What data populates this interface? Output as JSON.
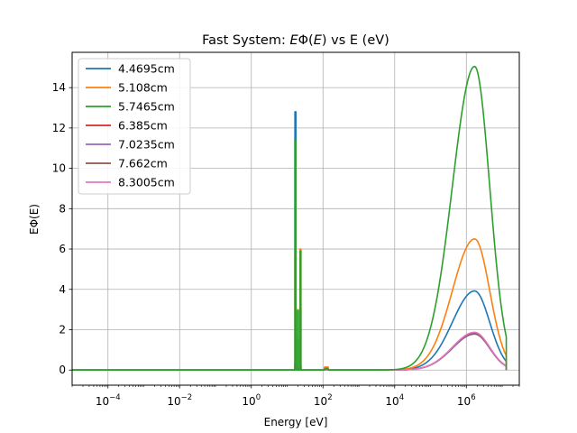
{
  "chart_data": {
    "type": "line",
    "title": "Fast System: EΦ(E) vs E (eV)",
    "title_parts": {
      "pre": "Fast System: ",
      "var": "E",
      "mid": "Φ(",
      "var2": "E",
      "post": ") vs E (eV)"
    },
    "xlabel": "Energy [eV]",
    "ylabel": "EΦ(E)",
    "x_scale": "log",
    "xlim": [
      1e-05,
      30000000.0
    ],
    "ylim": [
      -0.75,
      15.75
    ],
    "x_ticks": [
      {
        "value": 0.0001,
        "base": "10",
        "exp": "−4"
      },
      {
        "value": 0.01,
        "base": "10",
        "exp": "−2"
      },
      {
        "value": 1,
        "base": "10",
        "exp": "0"
      },
      {
        "value": 100.0,
        "base": "10",
        "exp": "2"
      },
      {
        "value": 10000.0,
        "base": "10",
        "exp": "4"
      },
      {
        "value": 1000000.0,
        "base": "10",
        "exp": "6"
      }
    ],
    "y_ticks": [
      0,
      2,
      4,
      6,
      8,
      10,
      12,
      14
    ],
    "grid": true,
    "legend_position": "top-left",
    "series": [
      {
        "name": "4.4695cm",
        "color": "#1f77b4",
        "peak": 3.92,
        "res1": 12.8,
        "res2": 3.1,
        "res3": 0.1,
        "zorder": 1
      },
      {
        "name": "5.108cm",
        "color": "#ff7f0e",
        "peak": 6.5,
        "res1": 5.8,
        "res2": 6.0,
        "res3": 0.15,
        "zorder": 2
      },
      {
        "name": "5.7465cm",
        "color": "#2ca02c",
        "peak": 15.05,
        "res1": 11.4,
        "res2": 5.9,
        "res3": 0.05,
        "zorder": 7
      },
      {
        "name": "6.385cm",
        "color": "#d62728",
        "peak": 1.85,
        "res1": 0.3,
        "res2": 0.2,
        "res3": 0.0,
        "zorder": 3
      },
      {
        "name": "7.0235cm",
        "color": "#9467bd",
        "peak": 1.78,
        "res1": 0.3,
        "res2": 0.2,
        "res3": 0.0,
        "zorder": 4
      },
      {
        "name": "7.662cm",
        "color": "#8c564b",
        "peak": 1.82,
        "res1": 0.3,
        "res2": 0.2,
        "res3": 0.0,
        "zorder": 5
      },
      {
        "name": "8.3005cm",
        "color": "#e377c2",
        "peak": 1.87,
        "res1": 0.3,
        "res2": 0.2,
        "res3": 0.0,
        "zorder": 6
      }
    ]
  }
}
